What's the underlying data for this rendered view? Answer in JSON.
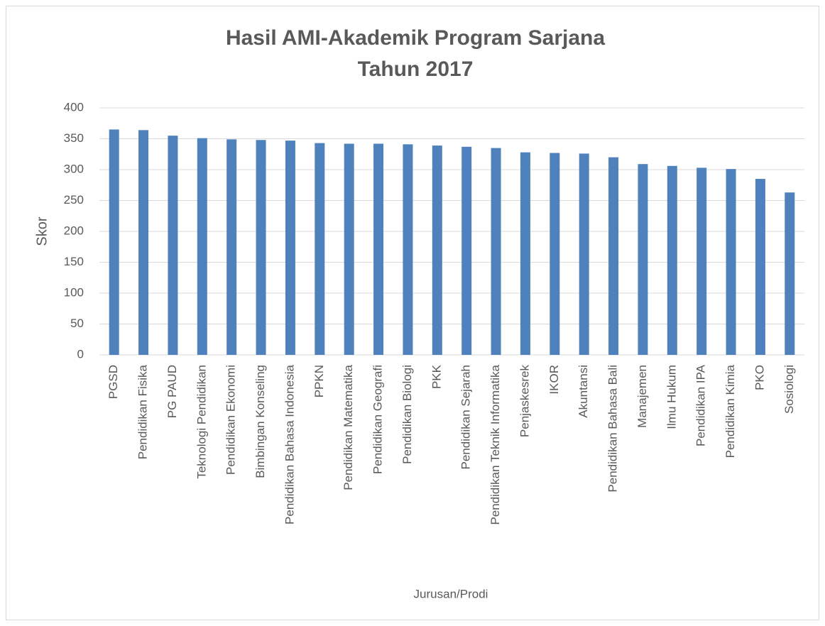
{
  "chart_data": {
    "type": "bar",
    "title": [
      "Hasil AMI-Akademik Program Sarjana",
      "Tahun 2017"
    ],
    "x_label": "Jurusan/Prodi",
    "y_label": "Skor",
    "categories": [
      "PGSD",
      "Pendidikan Fisika",
      "PG PAUD",
      "Teknologi Pendidikan",
      "Pendidikan Ekonomi",
      "Bimbingan Konseling",
      "Pendidikan Bahasa Indonesia",
      "PPKN",
      "Pendidikan Matematika",
      "Pendidikan Geografi",
      "Pendidikan Biologi",
      "PKK",
      "Pendidikan Sejarah",
      "Pendidikan Teknik Informatika",
      "Penjaskesrek",
      "IKOR",
      "Akuntansi",
      "Pendidikan Bahasa Bali",
      "Manajemen",
      "Ilmu Hukum",
      "Pendidikan IPA",
      "Pendidikan Kimia",
      "PKO",
      "Sosiologi"
    ],
    "values": [
      365,
      364,
      355,
      351,
      349,
      348,
      347,
      343,
      342,
      342,
      341,
      339,
      337,
      335,
      328,
      327,
      326,
      320,
      309,
      306,
      303,
      301,
      285,
      263
    ],
    "color": "#4f81bd",
    "ylim": [
      0,
      400
    ],
    "yticks": [
      0,
      50,
      100,
      150,
      200,
      250,
      300,
      350,
      400
    ],
    "grid": true
  }
}
